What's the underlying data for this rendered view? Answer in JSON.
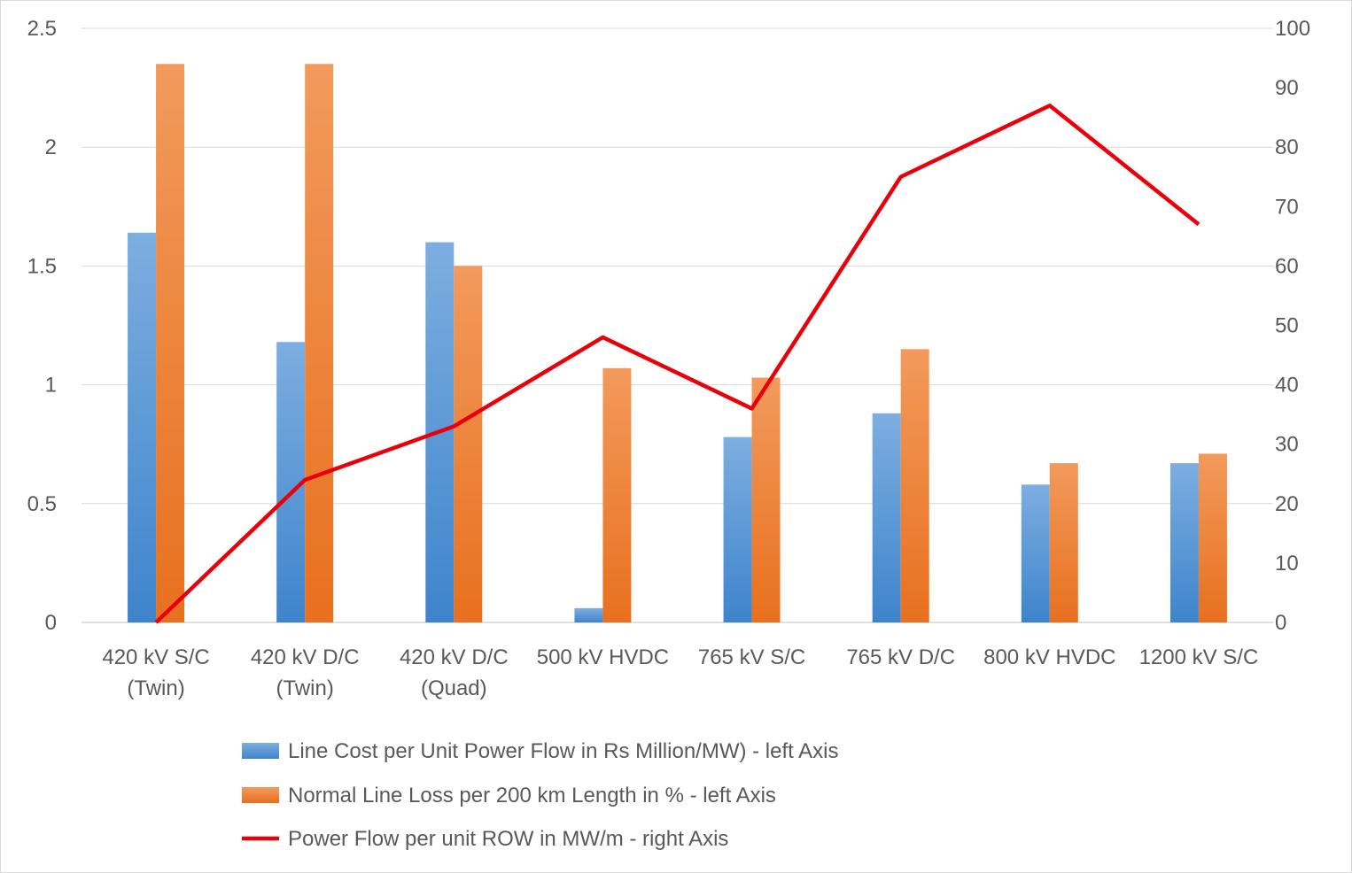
{
  "chart_data": {
    "type": "bar",
    "categories": [
      [
        "420 kV S/C",
        "(Twin)"
      ],
      [
        "420 kV D/C",
        "(Twin)"
      ],
      [
        "420 kV D/C",
        "(Quad)"
      ],
      [
        "500 kV HVDC"
      ],
      [
        "765 kV S/C"
      ],
      [
        "765 kV D/C"
      ],
      [
        "800 kV HVDC"
      ],
      [
        "1200 kV S/C"
      ]
    ],
    "series": [
      {
        "name": "Line Cost per Unit Power Flow in Rs Million/MW) - left Axis",
        "type": "bar",
        "axis": "left",
        "color": "#5B9BD5",
        "values": [
          1.64,
          1.18,
          1.6,
          0.06,
          0.78,
          0.88,
          0.58,
          0.67
        ]
      },
      {
        "name": "Normal Line Loss per 200 km Length in % - left Axis",
        "type": "bar",
        "axis": "left",
        "color": "#ED7D31",
        "values": [
          2.35,
          2.35,
          1.5,
          1.07,
          1.03,
          1.15,
          0.67,
          0.71
        ]
      },
      {
        "name": "Power Flow per unit ROW in MW/m - right Axis",
        "type": "line",
        "axis": "right",
        "color": "#E8000B",
        "values": [
          0,
          24,
          33,
          48,
          36,
          75,
          87,
          67
        ]
      }
    ],
    "y_left": {
      "min": 0,
      "max": 2.5,
      "ticks": [
        "0",
        "0.5",
        "1",
        "1.5",
        "2",
        "2.5"
      ]
    },
    "y_right": {
      "min": 0,
      "max": 100,
      "ticks": [
        "0",
        "10",
        "20",
        "30",
        "40",
        "50",
        "60",
        "70",
        "80",
        "90",
        "100"
      ]
    },
    "grid": true,
    "legend_position": "bottom"
  }
}
